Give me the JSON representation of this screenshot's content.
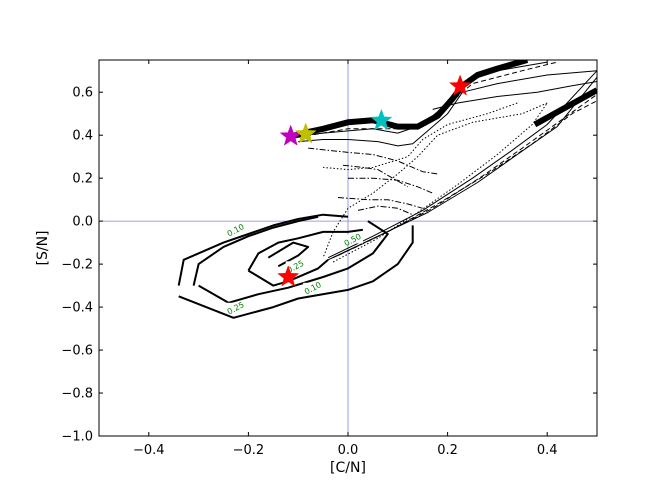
{
  "chart_data": {
    "type": "line",
    "title": "",
    "xlabel": "[C/N]",
    "ylabel": "[S/N]",
    "xlim": [
      -0.5,
      0.5
    ],
    "ylim": [
      -1.0,
      0.75
    ],
    "grid": false,
    "x_ticks": [
      "−0.4",
      "−0.2",
      "0.0",
      "0.2",
      "0.4"
    ],
    "x_tick_values": [
      -0.4,
      -0.2,
      0.0,
      0.2,
      0.4
    ],
    "y_ticks": [
      "−1.0",
      "−0.8",
      "−0.6",
      "−0.4",
      "−0.2",
      "0.0",
      "0.2",
      "0.4",
      "0.6"
    ],
    "y_tick_values": [
      -1.0,
      -0.8,
      -0.6,
      -0.4,
      -0.2,
      0.0,
      0.2,
      0.4,
      0.6
    ],
    "reference_lines": {
      "x": 0.0,
      "y": 0.0,
      "color": "#7b86e8"
    },
    "tracks": [
      {
        "style": "thick",
        "width": 6,
        "dash": "",
        "points": [
          [
            -0.12,
            0.39
          ],
          [
            -0.09,
            0.41
          ],
          [
            -0.05,
            0.43
          ],
          [
            0.0,
            0.46
          ],
          [
            0.05,
            0.47
          ],
          [
            0.1,
            0.44
          ],
          [
            0.14,
            0.44
          ],
          [
            0.18,
            0.49
          ],
          [
            0.21,
            0.57
          ],
          [
            0.23,
            0.63
          ],
          [
            0.26,
            0.68
          ],
          [
            0.3,
            0.71
          ],
          [
            0.36,
            0.75
          ]
        ]
      },
      {
        "style": "thick",
        "width": 6,
        "dash": "",
        "points": [
          [
            0.375,
            0.45
          ],
          [
            0.5,
            0.61
          ]
        ]
      },
      {
        "style": "solid",
        "width": 1,
        "dash": "",
        "points": [
          [
            -0.12,
            0.39
          ],
          [
            -0.05,
            0.41
          ],
          [
            0.0,
            0.42
          ],
          [
            0.05,
            0.43
          ],
          [
            0.1,
            0.41
          ],
          [
            0.15,
            0.45
          ],
          [
            0.18,
            0.51
          ],
          [
            0.22,
            0.6
          ],
          [
            0.25,
            0.66
          ],
          [
            0.3,
            0.7
          ],
          [
            0.4,
            0.74
          ]
        ]
      },
      {
        "style": "solid",
        "width": 1,
        "dash": "",
        "points": [
          [
            -0.1,
            0.37
          ],
          [
            -0.05,
            0.38
          ],
          [
            0.0,
            0.38
          ],
          [
            0.06,
            0.37
          ],
          [
            0.1,
            0.35
          ],
          [
            0.13,
            0.36
          ],
          [
            0.16,
            0.42
          ],
          [
            0.2,
            0.5
          ],
          [
            0.23,
            0.6
          ],
          [
            0.3,
            0.64
          ],
          [
            0.4,
            0.68
          ],
          [
            0.5,
            0.7
          ]
        ]
      },
      {
        "style": "dashed",
        "width": 1,
        "dash": "5,3",
        "points": [
          [
            -0.1,
            0.39
          ],
          [
            0.0,
            0.43
          ],
          [
            0.1,
            0.43
          ],
          [
            0.15,
            0.44
          ],
          [
            0.2,
            0.54
          ],
          [
            0.25,
            0.64
          ],
          [
            0.35,
            0.7
          ],
          [
            0.42,
            0.74
          ]
        ]
      },
      {
        "style": "solid",
        "width": 1,
        "dash": "",
        "points": [
          [
            0.17,
            0.52
          ],
          [
            0.22,
            0.55
          ],
          [
            0.3,
            0.58
          ],
          [
            0.38,
            0.6
          ],
          [
            0.45,
            0.63
          ],
          [
            0.5,
            0.65
          ]
        ]
      },
      {
        "style": "solid",
        "width": 1,
        "dash": "",
        "points": [
          [
            -0.04,
            -0.17
          ],
          [
            0.05,
            -0.07
          ],
          [
            0.15,
            0.05
          ],
          [
            0.25,
            0.2
          ],
          [
            0.33,
            0.33
          ],
          [
            0.4,
            0.45
          ],
          [
            0.5,
            0.7
          ]
        ]
      },
      {
        "style": "solid",
        "width": 1,
        "dash": "",
        "points": [
          [
            -0.04,
            -0.18
          ],
          [
            0.06,
            -0.07
          ],
          [
            0.16,
            0.04
          ],
          [
            0.26,
            0.18
          ],
          [
            0.34,
            0.31
          ],
          [
            0.42,
            0.44
          ],
          [
            0.5,
            0.67
          ]
        ]
      },
      {
        "style": "dashed",
        "width": 1,
        "dash": "5,3",
        "points": [
          [
            -0.03,
            -0.17
          ],
          [
            0.07,
            -0.06
          ],
          [
            0.17,
            0.06
          ],
          [
            0.27,
            0.21
          ],
          [
            0.35,
            0.34
          ],
          [
            0.5,
            0.59
          ]
        ]
      },
      {
        "style": "dashed",
        "width": 1,
        "dash": "5,3",
        "points": [
          [
            -0.02,
            -0.16
          ],
          [
            0.08,
            -0.05
          ],
          [
            0.18,
            0.08
          ],
          [
            0.28,
            0.22
          ],
          [
            0.37,
            0.36
          ],
          [
            0.45,
            0.5
          ],
          [
            0.5,
            0.56
          ]
        ]
      },
      {
        "style": "dotted",
        "width": 1,
        "dash": "1.5,2",
        "points": [
          [
            -0.03,
            -0.19
          ],
          [
            0.06,
            -0.08
          ],
          [
            0.14,
            0.04
          ],
          [
            0.22,
            0.17
          ],
          [
            0.3,
            0.31
          ],
          [
            0.37,
            0.45
          ],
          [
            0.4,
            0.55
          ]
        ]
      },
      {
        "style": "dotted",
        "width": 1,
        "dash": "1.5,2",
        "points": [
          [
            0.4,
            0.55
          ],
          [
            0.35,
            0.5
          ],
          [
            0.25,
            0.46
          ],
          [
            0.18,
            0.4
          ],
          [
            0.14,
            0.3
          ],
          [
            0.1,
            0.22
          ],
          [
            0.05,
            0.13
          ],
          [
            0.0,
            0.06
          ],
          [
            -0.03,
            -0.05
          ],
          [
            -0.05,
            -0.17
          ]
        ]
      },
      {
        "style": "dotted",
        "width": 1,
        "dash": "1.5,2",
        "points": [
          [
            0.34,
            0.55
          ],
          [
            0.28,
            0.5
          ],
          [
            0.2,
            0.45
          ],
          [
            0.15,
            0.38
          ],
          [
            0.12,
            0.3
          ],
          [
            0.05,
            0.25
          ],
          [
            0.0,
            0.24
          ],
          [
            -0.05,
            0.25
          ]
        ]
      },
      {
        "style": "dashdot",
        "width": 1,
        "dash": "6,2,1.5,2",
        "points": [
          [
            -0.08,
            0.34
          ],
          [
            0.0,
            0.32
          ],
          [
            0.05,
            0.31
          ],
          [
            0.1,
            0.28
          ],
          [
            0.15,
            0.23
          ],
          [
            0.18,
            0.22
          ]
        ]
      },
      {
        "style": "dashdot",
        "width": 1,
        "dash": "6,2,1.5,2",
        "points": [
          [
            0.0,
            0.2
          ],
          [
            0.05,
            0.2
          ],
          [
            0.1,
            0.19
          ],
          [
            0.14,
            0.16
          ],
          [
            0.17,
            0.13
          ]
        ]
      },
      {
        "style": "dashdot",
        "width": 1,
        "dash": "6,2,1.5,2",
        "points": [
          [
            -0.02,
            0.11
          ],
          [
            0.04,
            0.1
          ],
          [
            0.08,
            0.1
          ],
          [
            0.12,
            0.08
          ],
          [
            0.15,
            0.06
          ]
        ]
      },
      {
        "style": "dashdot",
        "width": 1,
        "dash": "6,2,1.5,2",
        "points": [
          [
            -0.01,
            0.26
          ],
          [
            0.03,
            0.25
          ],
          [
            0.06,
            0.24
          ],
          [
            0.09,
            0.2
          ],
          [
            0.12,
            0.16
          ]
        ]
      },
      {
        "style": "dashdot",
        "width": 1,
        "dash": "6,2,1.5,2",
        "points": [
          [
            0.02,
            0.05
          ],
          [
            0.06,
            0.07
          ],
          [
            0.1,
            0.06
          ],
          [
            0.13,
            0.03
          ]
        ]
      }
    ],
    "contours": [
      {
        "width": 2,
        "points": [
          [
            -0.34,
            -0.3
          ],
          [
            -0.33,
            -0.18
          ],
          [
            -0.25,
            -0.1
          ],
          [
            -0.2,
            -0.06
          ],
          [
            -0.15,
            -0.02
          ],
          [
            -0.1,
            0.01
          ],
          [
            -0.05,
            0.03
          ],
          [
            0.0,
            0.02
          ]
        ]
      },
      {
        "width": 2,
        "points": [
          [
            -0.34,
            -0.35
          ],
          [
            -0.23,
            -0.45
          ],
          [
            -0.15,
            -0.4
          ],
          [
            -0.1,
            -0.36
          ],
          [
            0.0,
            -0.32
          ],
          [
            0.05,
            -0.28
          ],
          [
            0.1,
            -0.2
          ],
          [
            0.13,
            -0.1
          ],
          [
            0.13,
            -0.02
          ]
        ]
      },
      {
        "width": 2,
        "points": [
          [
            -0.31,
            -0.3
          ],
          [
            -0.3,
            -0.2
          ],
          [
            -0.25,
            -0.12
          ],
          [
            -0.2,
            -0.07
          ],
          [
            -0.15,
            -0.03
          ],
          [
            -0.1,
            0.0
          ],
          [
            -0.06,
            0.02
          ]
        ]
      },
      {
        "width": 2,
        "points": [
          [
            -0.3,
            -0.3
          ],
          [
            -0.24,
            -0.38
          ],
          [
            -0.18,
            -0.34
          ],
          [
            -0.12,
            -0.31
          ],
          [
            -0.05,
            -0.26
          ],
          [
            0.0,
            -0.22
          ],
          [
            0.05,
            -0.15
          ],
          [
            0.08,
            -0.06
          ],
          [
            0.04,
            0.0
          ]
        ]
      },
      {
        "width": 2,
        "points": [
          [
            -0.2,
            -0.23
          ],
          [
            -0.18,
            -0.15
          ],
          [
            -0.14,
            -0.1
          ],
          [
            -0.1,
            -0.08
          ],
          [
            -0.05,
            -0.05
          ],
          [
            0.0,
            -0.05
          ],
          [
            0.03,
            -0.04
          ]
        ]
      },
      {
        "width": 2,
        "points": [
          [
            -0.2,
            -0.23
          ],
          [
            -0.15,
            -0.3
          ],
          [
            -0.12,
            -0.28
          ],
          [
            -0.06,
            -0.22
          ],
          [
            -0.04,
            -0.18
          ]
        ]
      },
      {
        "width": 2,
        "points": [
          [
            -0.16,
            -0.17
          ],
          [
            -0.11,
            -0.1
          ],
          [
            -0.08,
            -0.12
          ],
          [
            -0.1,
            -0.16
          ],
          [
            -0.14,
            -0.21
          ]
        ]
      }
    ],
    "contour_labels": [
      {
        "text": "0.10",
        "x": -0.225,
        "y": -0.045
      },
      {
        "text": "0.10",
        "x": -0.07,
        "y": -0.315
      },
      {
        "text": "0.25",
        "x": -0.225,
        "y": -0.408
      },
      {
        "text": "0.25",
        "x": -0.105,
        "y": -0.215
      },
      {
        "text": "0.50",
        "x": 0.01,
        "y": -0.09
      }
    ],
    "stars": [
      {
        "x": -0.115,
        "y": 0.395,
        "color": "#bf00bf"
      },
      {
        "x": -0.085,
        "y": 0.405,
        "color": "#bfbf00"
      },
      {
        "x": 0.067,
        "y": 0.468,
        "color": "#00bfbf"
      },
      {
        "x": 0.225,
        "y": 0.628,
        "color": "#ff0000"
      },
      {
        "x": -0.12,
        "y": -0.26,
        "color": "#ff0000"
      }
    ]
  }
}
